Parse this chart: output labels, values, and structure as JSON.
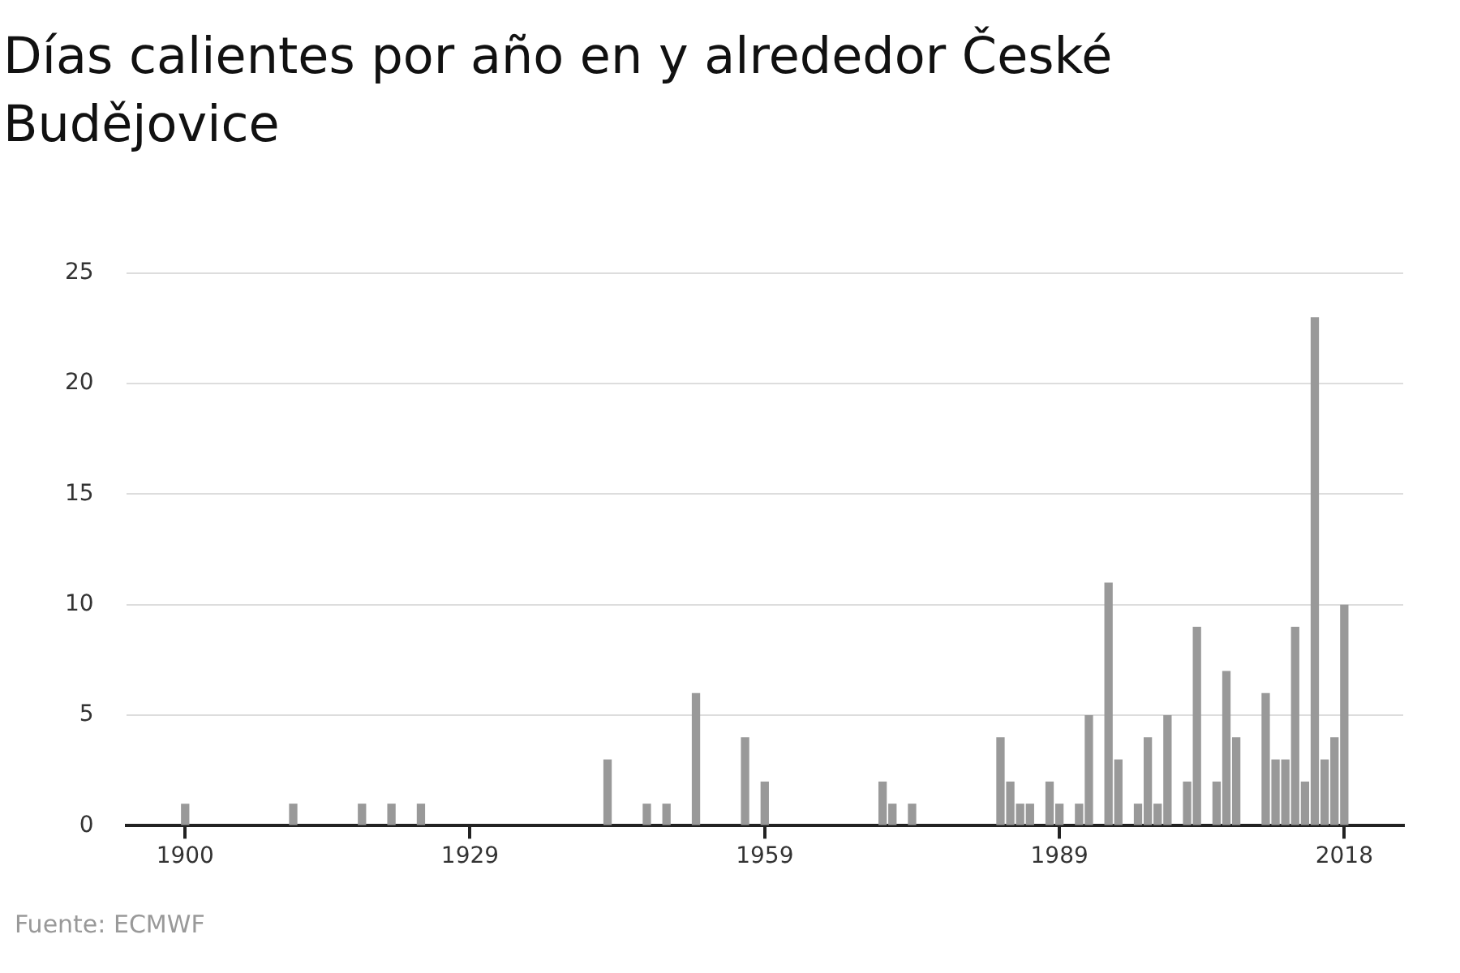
{
  "chart_data": {
    "type": "bar",
    "title": "Días calientes por año en y alrededor České Budějovice",
    "x": [
      1900,
      1911,
      1918,
      1921,
      1924,
      1943,
      1947,
      1949,
      1952,
      1957,
      1959,
      1971,
      1972,
      1974,
      1983,
      1984,
      1985,
      1986,
      1988,
      1989,
      1991,
      1992,
      1994,
      1995,
      1997,
      1998,
      1999,
      2000,
      2002,
      2003,
      2005,
      2006,
      2007,
      2010,
      2011,
      2012,
      2013,
      2014,
      2015,
      2016,
      2017,
      2018
    ],
    "values": [
      1,
      1,
      1,
      1,
      1,
      3,
      1,
      1,
      6,
      4,
      2,
      2,
      1,
      1,
      4,
      2,
      1,
      1,
      2,
      1,
      1,
      5,
      11,
      3,
      1,
      4,
      1,
      5,
      2,
      9,
      2,
      7,
      4,
      6,
      3,
      3,
      9,
      2,
      23,
      3,
      4,
      10
    ],
    "color": "#999999",
    "xlim": [
      1894,
      2024
    ],
    "xticks": [
      1900,
      1929,
      1959,
      1989,
      2018
    ],
    "ylim": [
      0,
      25
    ],
    "yticks": [
      0,
      5,
      10,
      15,
      20,
      25
    ],
    "grid": "y",
    "annotations": [
      "Fuente: ECMWF"
    ]
  }
}
